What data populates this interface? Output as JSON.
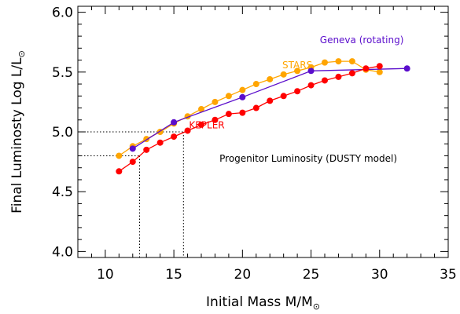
{
  "chart_data": {
    "type": "line",
    "title": "",
    "xlabel": "Initial Mass M/M",
    "ylabel": "Final Luminosty Log L/L",
    "xlabel_subscript_symbol": "⊙",
    "ylabel_subscript_symbol": "⊙",
    "xlim": [
      8,
      35
    ],
    "ylim": [
      3.95,
      6.05
    ],
    "x_ticks": [
      10,
      15,
      20,
      25,
      30,
      35
    ],
    "x_tick_labels": [
      "10",
      "15",
      "20",
      "25",
      "30",
      "35"
    ],
    "y_ticks": [
      4.0,
      4.5,
      5.0,
      5.5,
      6.0
    ],
    "y_tick_labels": [
      "4.0",
      "4.5",
      "5.0",
      "5.5",
      "6.0"
    ],
    "grid": false,
    "series": [
      {
        "name": "STARS",
        "color": "#ffa500",
        "x": [
          11,
          12,
          13,
          14,
          15,
          16,
          17,
          18,
          19,
          20,
          21,
          22,
          23,
          24,
          25,
          26,
          27,
          28,
          29,
          30
        ],
        "y": [
          4.8,
          4.88,
          4.94,
          5.0,
          5.07,
          5.13,
          5.19,
          5.25,
          5.3,
          5.35,
          5.4,
          5.44,
          5.48,
          5.51,
          5.54,
          5.58,
          5.59,
          5.59,
          5.52,
          5.5
        ]
      },
      {
        "name": "Geneva (rotating)",
        "color": "#5a0dcc",
        "x": [
          12,
          15,
          20,
          25,
          32
        ],
        "y": [
          4.86,
          5.08,
          5.29,
          5.51,
          5.53
        ]
      },
      {
        "name": "KEPLER",
        "color": "#ff0000",
        "x": [
          11,
          12,
          13,
          14,
          15,
          16,
          17,
          18,
          19,
          20,
          21,
          22,
          23,
          24,
          25,
          26,
          27,
          28,
          29,
          30
        ],
        "y": [
          4.67,
          4.75,
          4.85,
          4.91,
          4.96,
          5.01,
          5.06,
          5.1,
          5.15,
          5.16,
          5.2,
          5.26,
          5.3,
          5.34,
          5.39,
          5.43,
          5.46,
          5.49,
          5.53,
          5.55
        ]
      }
    ],
    "series_labels": [
      {
        "text": "STARS",
        "color": "#ffa500",
        "x": 24,
        "y": 5.53
      },
      {
        "text": "Geneva (rotating)",
        "color": "#5a0dcc",
        "x": 28.7,
        "y": 5.74
      },
      {
        "text": "KEPLER",
        "color": "#ff0000",
        "x": 17.4,
        "y": 5.03
      }
    ],
    "guide_lines": [
      {
        "x": 12.5,
        "y": 4.8
      },
      {
        "x": 15.7,
        "y": 5.0
      }
    ],
    "annotation": {
      "text": "Progenitor Luminosity (DUSTY model)",
      "color": "#000000",
      "x": 24.8,
      "y": 4.75
    }
  }
}
